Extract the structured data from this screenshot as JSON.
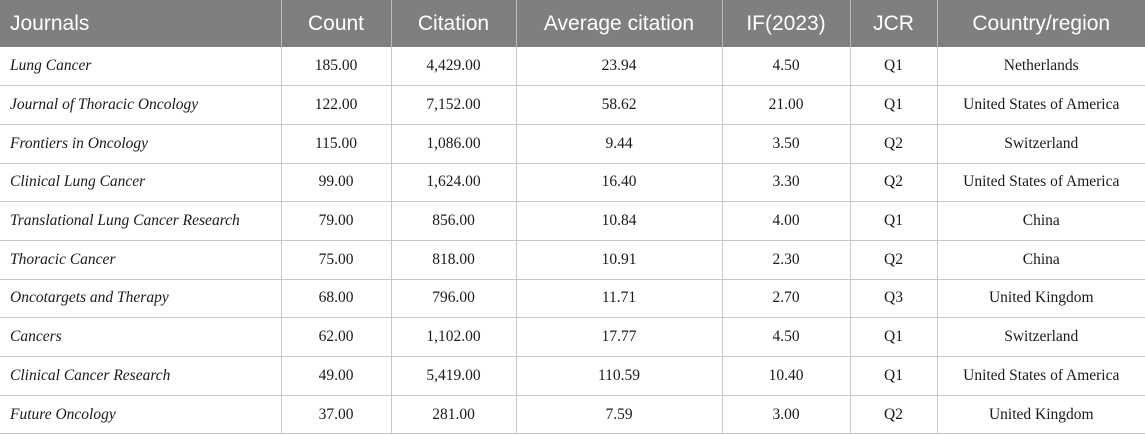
{
  "table": {
    "headers": [
      "Journals",
      "Count",
      "Citation",
      "Average citation",
      "IF(2023)",
      "JCR",
      "Country/region"
    ],
    "rows": [
      [
        "Lung Cancer",
        "185.00",
        "4,429.00",
        "23.94",
        "4.50",
        "Q1",
        "Netherlands"
      ],
      [
        "Journal of Thoracic Oncology",
        "122.00",
        "7,152.00",
        "58.62",
        "21.00",
        "Q1",
        "United States of America"
      ],
      [
        "Frontiers in Oncology",
        "115.00",
        "1,086.00",
        "9.44",
        "3.50",
        "Q2",
        "Switzerland"
      ],
      [
        "Clinical Lung Cancer",
        "99.00",
        "1,624.00",
        "16.40",
        "3.30",
        "Q2",
        "United States of America"
      ],
      [
        "Translational Lung Cancer Research",
        "79.00",
        "856.00",
        "10.84",
        "4.00",
        "Q1",
        "China"
      ],
      [
        "Thoracic Cancer",
        "75.00",
        "818.00",
        "10.91",
        "2.30",
        "Q2",
        "China"
      ],
      [
        "Oncotargets and Therapy",
        "68.00",
        "796.00",
        "11.71",
        "2.70",
        "Q3",
        "United Kingdom"
      ],
      [
        "Cancers",
        "62.00",
        "1,102.00",
        "17.77",
        "4.50",
        "Q1",
        "Switzerland"
      ],
      [
        "Clinical Cancer Research",
        "49.00",
        "5,419.00",
        "110.59",
        "10.40",
        "Q1",
        "United States of America"
      ],
      [
        "Future Oncology",
        "37.00",
        "281.00",
        "7.59",
        "3.00",
        "Q2",
        "United Kingdom"
      ]
    ]
  },
  "colors": {
    "header_background": "#7f7f7f",
    "header_text": "#ffffff",
    "grid_line": "#c8c8c8"
  }
}
